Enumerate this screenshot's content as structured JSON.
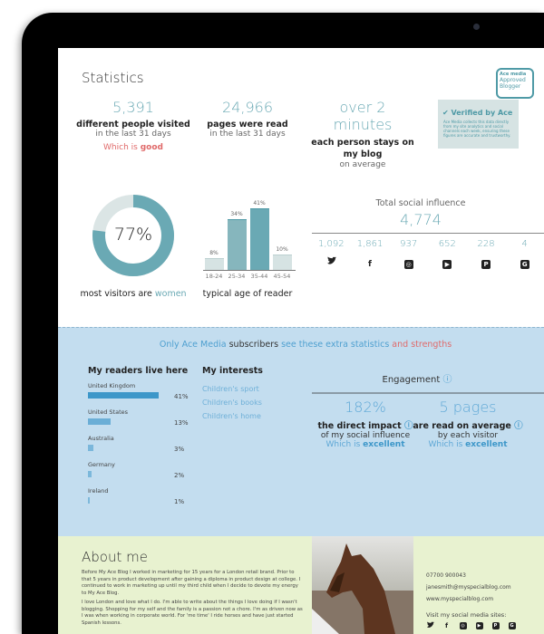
{
  "stats": {
    "title": "Statistics",
    "items": [
      {
        "value": "5,391",
        "label": "different people visited",
        "sub": "in the last 31 days",
        "note_prefix": "Which is",
        "note_word": "good"
      },
      {
        "value": "24,966",
        "label": "pages were read",
        "sub": "in the last 31 days"
      },
      {
        "value": "over 2 minutes",
        "label": "each person stays on my blog",
        "sub": "on average"
      }
    ]
  },
  "badge": {
    "brand": "Ace media",
    "approved": "Approved Blogger",
    "verified": "Verified by Ace",
    "text": "Ace Media collects this data directly from my site analytics and social channels each week, ensuring these figures are accurate and trustworthy."
  },
  "gender": {
    "value": "77%",
    "percent": 77,
    "label_prefix": "most visitors are",
    "label_word": "women",
    "colors": {
      "main": "#6aa9b4",
      "rest": "#dbe5e5"
    }
  },
  "chart_data": {
    "type": "bar",
    "categories": [
      "18-24",
      "25-34",
      "35-44",
      "45-54"
    ],
    "values": [
      8,
      34,
      41,
      10
    ],
    "labels": [
      "8%",
      "34%",
      "41%",
      "10%"
    ],
    "xlabel": "typical age of reader",
    "ylim": [
      0,
      41
    ]
  },
  "social": {
    "title": "Total social influence",
    "total": "4,774",
    "items": [
      {
        "icon": "twitter-icon",
        "value": "1,092"
      },
      {
        "icon": "facebook-icon",
        "value": "1,861"
      },
      {
        "icon": "instagram-icon",
        "value": "937"
      },
      {
        "icon": "youtube-icon",
        "value": "652"
      },
      {
        "icon": "pinterest-icon",
        "value": "228"
      },
      {
        "icon": "google-plus-icon",
        "value": "4"
      }
    ]
  },
  "subscriber": {
    "a": "Only Ace Media",
    "b": "subscribers",
    "c": "see these extra statistics",
    "d": "and strengths"
  },
  "readers": {
    "title": "My readers live here",
    "items": [
      {
        "country": "United Kingdom",
        "percent": 41,
        "label": "41%"
      },
      {
        "country": "United States",
        "percent": 13,
        "label": "13%"
      },
      {
        "country": "Australia",
        "percent": 3,
        "label": "3%"
      },
      {
        "country": "Germany",
        "percent": 2,
        "label": "2%"
      },
      {
        "country": "Ireland",
        "percent": 1,
        "label": "1%"
      }
    ]
  },
  "interests": {
    "title": "My interests",
    "items": [
      "Children's sport",
      "Children's books",
      "Children's home"
    ]
  },
  "engagement": {
    "title": "Engagement",
    "items": [
      {
        "value": "182%",
        "label": "the direct impact",
        "sub": "of my social influence",
        "note_prefix": "Which is",
        "note_word": "excellent"
      },
      {
        "value": "5 pages",
        "label": "are read on average",
        "sub": "by each visitor",
        "note_prefix": "Which is",
        "note_word": "excellent"
      }
    ]
  },
  "about": {
    "title": "About me",
    "p1": "Before My Ace Blog I worked in marketing for 15 years for a London retail brand. Prior to that 5 years in product development after gaining a diploma in product design at college. I continued to work in marketing up until my third child when I decide to devote my energy to My Ace Blog.",
    "p2": "I love London and love what I do. I'm able to write about the things I love doing if I wasn't blogging. Shopping for my self and the family is a passion not a chore. I'm as driven now as I was when working in corporate world. For 'me time' I ride horses and have just started Spanish lessons.",
    "phone": "07700 900043",
    "email": "janesmith@myspecialblog.com",
    "web": "www.myspecialblog.com",
    "visit": "Visit my social media sites:"
  }
}
